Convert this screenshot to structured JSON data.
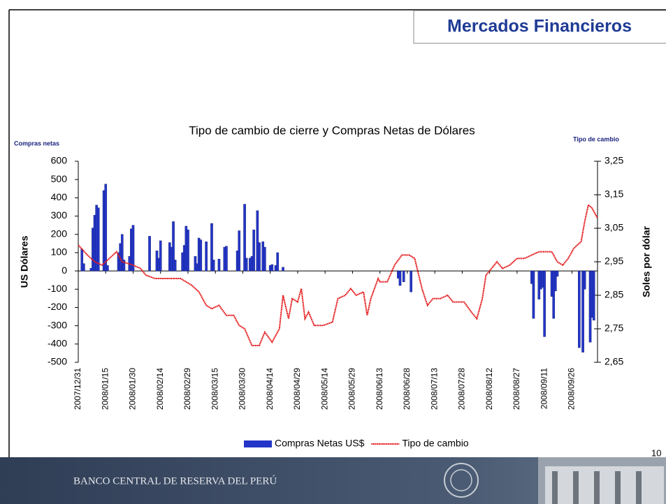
{
  "header": {
    "title": "Mercados Financieros"
  },
  "page_number": "10",
  "footer": {
    "institution": "BANCO CENTRAL DE RESERVA DEL PERÚ"
  },
  "chart_data": {
    "type": "combo",
    "title": "Tipo de cambio de cierre y Compras Netas de Dólares",
    "y_label_top": "Compras netas",
    "y2_label_top": "Tipo de cambio",
    "y_label": "US Dólares",
    "y2_label": "Soles por dólar",
    "xlim": [
      "2007/12/31",
      "2008/10/10"
    ],
    "xticks": [
      "2007/12/31",
      "2008/01/15",
      "2008/01/30",
      "2008/02/14",
      "2008/02/29",
      "2008/03/15",
      "2008/03/30",
      "2008/04/14",
      "2008/04/29",
      "2008/05/14",
      "2008/05/29",
      "2008/06/13",
      "2008/06/28",
      "2008/07/13",
      "2008/07/28",
      "2008/08/12",
      "2008/08/27",
      "2008/09/11",
      "2008/09/26"
    ],
    "ylim": [
      -500,
      600
    ],
    "yticks": [
      -500,
      -400,
      -300,
      -200,
      -100,
      0,
      100,
      200,
      300,
      400,
      500,
      600
    ],
    "y2lim": [
      2.65,
      3.25
    ],
    "y2ticks": [
      {
        "value": 2.65,
        "label": "2,65"
      },
      {
        "value": 2.75,
        "label": "2,75"
      },
      {
        "value": 2.85,
        "label": "2,85"
      },
      {
        "value": 2.95,
        "label": "2,95"
      },
      {
        "value": 3.05,
        "label": "3,05"
      },
      {
        "value": 3.15,
        "label": "3,15"
      },
      {
        "value": 3.25,
        "label": "3,25"
      }
    ],
    "legend": "bottom",
    "series": [
      {
        "name": "Compras Netas US$",
        "type": "bar",
        "color": "#2436c8",
        "x": [
          "2008/01/02",
          "2008/01/03",
          "2008/01/07",
          "2008/01/08",
          "2008/01/09",
          "2008/01/10",
          "2008/01/11",
          "2008/01/14",
          "2008/01/15",
          "2008/01/16",
          "2008/01/22",
          "2008/01/23",
          "2008/01/24",
          "2008/01/25",
          "2008/01/28",
          "2008/01/29",
          "2008/01/30",
          "2008/02/08",
          "2008/02/12",
          "2008/02/13",
          "2008/02/14",
          "2008/02/19",
          "2008/02/20",
          "2008/02/21",
          "2008/02/22",
          "2008/02/26",
          "2008/02/27",
          "2008/02/28",
          "2008/02/29",
          "2008/03/04",
          "2008/03/05",
          "2008/03/06",
          "2008/03/07",
          "2008/03/10",
          "2008/03/13",
          "2008/03/14",
          "2008/03/17",
          "2008/03/20",
          "2008/03/21",
          "2008/03/27",
          "2008/03/28",
          "2008/03/31",
          "2008/04/01",
          "2008/04/03",
          "2008/04/04",
          "2008/04/05",
          "2008/04/07",
          "2008/04/08",
          "2008/04/10",
          "2008/04/11",
          "2008/04/14",
          "2008/04/15",
          "2008/04/17",
          "2008/04/18",
          "2008/04/21",
          "2008/06/23",
          "2008/06/24",
          "2008/06/26",
          "2008/06/30",
          "2008/09/04",
          "2008/09/05",
          "2008/09/08",
          "2008/09/09",
          "2008/09/10",
          "2008/09/11",
          "2008/09/15",
          "2008/09/16",
          "2008/09/17",
          "2008/09/18",
          "2008/09/30",
          "2008/10/02",
          "2008/10/03",
          "2008/10/06",
          "2008/10/07",
          "2008/10/08"
        ],
        "values": [
          120,
          40,
          15,
          235,
          305,
          360,
          345,
          440,
          475,
          30,
          100,
          150,
          200,
          60,
          80,
          230,
          250,
          190,
          110,
          70,
          165,
          155,
          130,
          270,
          60,
          100,
          140,
          245,
          225,
          80,
          40,
          180,
          170,
          160,
          260,
          60,
          65,
          130,
          135,
          110,
          220,
          365,
          70,
          70,
          80,
          225,
          330,
          155,
          160,
          130,
          30,
          35,
          30,
          100,
          20,
          -40,
          -80,
          -60,
          -115,
          -70,
          -260,
          -155,
          -100,
          -90,
          -360,
          -140,
          -260,
          -110,
          -30,
          -420,
          -445,
          -100,
          -390,
          -255,
          -270
        ]
      },
      {
        "name": "Tipo de cambio",
        "type": "line",
        "axis": "y2",
        "color": "#e41a1c",
        "x": [
          "2007/12/31",
          "2008/01/05",
          "2008/01/09",
          "2008/01/13",
          "2008/01/17",
          "2008/01/21",
          "2008/01/24",
          "2008/01/30",
          "2008/02/03",
          "2008/02/06",
          "2008/02/11",
          "2008/02/18",
          "2008/02/25",
          "2008/03/02",
          "2008/03/06",
          "2008/03/10",
          "2008/03/13",
          "2008/03/17",
          "2008/03/21",
          "2008/03/25",
          "2008/03/28",
          "2008/03/31",
          "2008/04/04",
          "2008/04/08",
          "2008/04/11",
          "2008/04/15",
          "2008/04/19",
          "2008/04/21",
          "2008/04/24",
          "2008/04/26",
          "2008/04/29",
          "2008/05/01",
          "2008/05/03",
          "2008/05/05",
          "2008/05/08",
          "2008/05/13",
          "2008/05/18",
          "2008/05/21",
          "2008/05/25",
          "2008/05/28",
          "2008/05/31",
          "2008/06/04",
          "2008/06/06",
          "2008/06/08",
          "2008/06/12",
          "2008/06/13",
          "2008/06/17",
          "2008/06/21",
          "2008/06/25",
          "2008/06/29",
          "2008/07/02",
          "2008/07/06",
          "2008/07/09",
          "2008/07/12",
          "2008/07/16",
          "2008/07/20",
          "2008/07/23",
          "2008/07/29",
          "2008/08/02",
          "2008/08/05",
          "2008/08/08",
          "2008/08/10",
          "2008/08/13",
          "2008/08/16",
          "2008/08/19",
          "2008/08/23",
          "2008/08/27",
          "2008/08/31",
          "2008/09/04",
          "2008/09/08",
          "2008/09/11",
          "2008/09/15",
          "2008/09/18",
          "2008/09/21",
          "2008/09/24",
          "2008/09/27",
          "2008/10/01",
          "2008/10/03",
          "2008/10/05",
          "2008/10/07",
          "2008/10/10"
        ],
        "values": [
          3.0,
          2.97,
          2.95,
          2.94,
          2.96,
          2.98,
          2.95,
          2.94,
          2.93,
          2.91,
          2.9,
          2.9,
          2.9,
          2.88,
          2.86,
          2.82,
          2.81,
          2.82,
          2.79,
          2.79,
          2.76,
          2.75,
          2.7,
          2.7,
          2.74,
          2.71,
          2.75,
          2.85,
          2.78,
          2.84,
          2.83,
          2.87,
          2.78,
          2.8,
          2.76,
          2.76,
          2.77,
          2.84,
          2.85,
          2.87,
          2.85,
          2.86,
          2.79,
          2.84,
          2.9,
          2.89,
          2.89,
          2.94,
          2.97,
          2.97,
          2.96,
          2.87,
          2.82,
          2.84,
          2.84,
          2.85,
          2.83,
          2.83,
          2.8,
          2.78,
          2.84,
          2.91,
          2.93,
          2.95,
          2.93,
          2.94,
          2.96,
          2.96,
          2.97,
          2.98,
          2.98,
          2.98,
          2.95,
          2.94,
          2.96,
          2.99,
          3.01,
          3.07,
          3.12,
          3.11,
          3.08
        ]
      }
    ]
  }
}
